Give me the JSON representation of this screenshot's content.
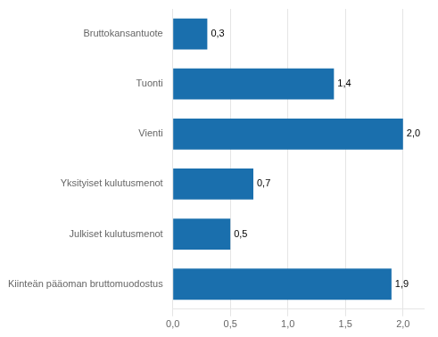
{
  "chart_data": {
    "type": "bar",
    "orientation": "horizontal",
    "categories": [
      "Kiinteän pääoman bruttomuodostus",
      "Julkiset kulutusmenot",
      "Yksityiset kulutusmenot",
      "Vienti",
      "Tuonti",
      "Bruttokansantuote"
    ],
    "values": [
      1.9,
      0.5,
      0.7,
      2.0,
      1.4,
      0.3
    ],
    "value_labels": [
      "1,9",
      "0,5",
      "0,7",
      "2,0",
      "1,4",
      "0,3"
    ],
    "color": "#1a6fad",
    "xlim": [
      0,
      2.18
    ],
    "xticks": [
      {
        "value": 0.0,
        "label": "0,0"
      },
      {
        "value": 0.5,
        "label": "0,5"
      },
      {
        "value": 1.0,
        "label": "1,0"
      },
      {
        "value": 1.5,
        "label": "1,5"
      },
      {
        "value": 2.0,
        "label": "2,0"
      }
    ],
    "grid": true,
    "data_labels": true
  }
}
